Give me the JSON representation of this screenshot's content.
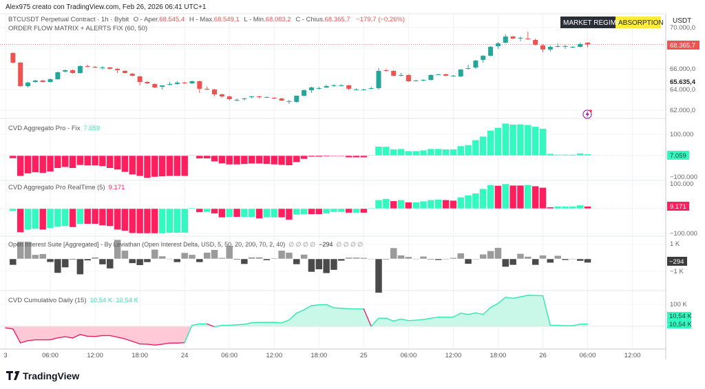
{
  "header": {
    "attribution": "Alex975 creato con TradingView.com, Feb 26, 2026 06:41 UTC+1"
  },
  "legend_main": {
    "symbol": "BTCUSDT Perpetual Contract · 1h · Bybit",
    "o_label": "O - Aper.",
    "o_value": "68.545,4",
    "h_label": "H - Max.",
    "h_value": "68.549,1",
    "l_label": "L - Min.",
    "l_value": "68.083,2",
    "c_label": "C - Chius.",
    "c_value": "68.365,7",
    "change": "−179,7 (−0,26%)",
    "indicator": "ORDER FLOW MATRIX + ALERTS FIX (60, 50)"
  },
  "regime": {
    "label": "MARKET REGIME",
    "value": "ABSORPTION"
  },
  "price_axis": {
    "currency": "USDT",
    "last_price": "68.365,7",
    "marked_level": "65.635,4"
  },
  "panes": {
    "cvd_fix": {
      "title": "CVD Aggregato Pro - Fix",
      "value": "7.059",
      "top": "100.000",
      "bottom": "−100.000"
    },
    "cvd_rt": {
      "title": "CVD Aggregato Pro RealTime  (5)",
      "value": "9.171",
      "top": "100.000",
      "bottom": "−100.000"
    },
    "oi": {
      "title": "Open Interest Suite [Aggregated] - By Leviathan (Open Interest Delta, USD, 5, 50, 20, 200, 70, 2, 40)",
      "na1": "∅ ∅ ∅ ∅",
      "value": "−294",
      "na2": "∅ ∅ ∅ ∅",
      "top": "1 K",
      "bottom": "−1 K"
    },
    "cvd_cum": {
      "title": "CVD Cumulativo Daily (15)",
      "value1": "10,54 K",
      "value2": "10,54 K",
      "top": "100 K"
    }
  },
  "time_axis": [
    "3",
    "06:00",
    "12:00",
    "18:00",
    "24",
    "06:00",
    "12:00",
    "18:00",
    "25",
    "06:00",
    "12:00",
    "18:00",
    "26",
    "06:00",
    "12:00"
  ],
  "logo": "TradingView",
  "colors": {
    "up": "#26a69a",
    "down": "#ef5350",
    "cvd_up": "#33f8c0",
    "cvd_down": "#ff1f5e",
    "oi_pos": "#9b9b9b",
    "oi_neg": "#4a4a4a",
    "regime_bg": "#2a2e39",
    "regime_accent": "#ffeb3b",
    "alert": "#9c27b0"
  },
  "chart_data": [
    {
      "type": "candlestick",
      "x_unit": "hour (from Feb 23 00:00)",
      "x_start": 1,
      "ylim": [
        61000,
        70500
      ],
      "yticks": [
        {
          "value": 70000,
          "label": "70.000,0"
        },
        {
          "value": 66000,
          "label": "66.000,0"
        },
        {
          "value": 64000,
          "label": "64.000,0"
        },
        {
          "value": 62000,
          "label": "62.000,0"
        }
      ],
      "ohlc": [
        [
          67530,
          67600,
          66530,
          66600
        ],
        [
          66600,
          66670,
          64270,
          64330
        ],
        [
          64330,
          64740,
          64200,
          64670
        ],
        [
          64730,
          64930,
          64650,
          64870
        ],
        [
          64870,
          64950,
          64680,
          64730
        ],
        [
          64730,
          65080,
          64660,
          65000
        ],
        [
          65000,
          65730,
          64930,
          65670
        ],
        [
          65730,
          65930,
          65660,
          65870
        ],
        [
          65870,
          65950,
          65530,
          65600
        ],
        [
          65600,
          66330,
          65530,
          66270
        ],
        [
          66270,
          66400,
          66130,
          66200
        ],
        [
          66200,
          66270,
          66060,
          66130
        ],
        [
          66130,
          66270,
          65930,
          66130
        ],
        [
          66130,
          66200,
          65930,
          66000
        ],
        [
          66000,
          66070,
          65600,
          65870
        ],
        [
          65800,
          65870,
          65530,
          65600
        ],
        [
          65530,
          65600,
          65260,
          65330
        ],
        [
          65270,
          65340,
          64400,
          64730
        ],
        [
          64730,
          64800,
          64530,
          64600
        ],
        [
          64530,
          64600,
          64130,
          64200
        ],
        [
          64270,
          64340,
          64000,
          64400
        ],
        [
          64470,
          64730,
          64400,
          64530
        ],
        [
          64530,
          64800,
          64460,
          64670
        ],
        [
          64670,
          64740,
          64530,
          64600
        ],
        [
          64600,
          64870,
          64530,
          64800
        ],
        [
          64800,
          64870,
          63670,
          64070
        ],
        [
          64070,
          64300,
          63930,
          64000
        ],
        [
          64000,
          64070,
          63330,
          63530
        ],
        [
          63530,
          63600,
          63200,
          63330
        ],
        [
          63330,
          63400,
          62930,
          63070
        ],
        [
          63000,
          63130,
          62870,
          63000
        ],
        [
          63070,
          63200,
          62930,
          63130
        ],
        [
          63270,
          63400,
          63130,
          63330
        ],
        [
          63330,
          63400,
          63130,
          63270
        ],
        [
          63270,
          63330,
          63200,
          63270
        ],
        [
          63200,
          63270,
          63070,
          63130
        ],
        [
          63130,
          63200,
          62870,
          62930
        ],
        [
          62870,
          63000,
          62600,
          62870
        ],
        [
          62800,
          63400,
          62730,
          63400
        ],
        [
          63400,
          64000,
          63330,
          63930
        ],
        [
          63930,
          64270,
          63670,
          64200
        ],
        [
          64130,
          64270,
          64000,
          64130
        ],
        [
          64200,
          64470,
          64130,
          64330
        ],
        [
          64330,
          64530,
          64270,
          64400
        ],
        [
          64400,
          64530,
          64330,
          64400
        ],
        [
          64400,
          64470,
          63930,
          64070
        ],
        [
          64000,
          64130,
          63930,
          64000
        ],
        [
          64000,
          64070,
          63930,
          64000
        ],
        [
          64070,
          64270,
          64000,
          64130
        ],
        [
          64130,
          66070,
          64000,
          65800
        ],
        [
          65870,
          66000,
          65730,
          65800
        ],
        [
          65800,
          65870,
          65270,
          65330
        ],
        [
          65400,
          65600,
          65270,
          65400
        ],
        [
          65400,
          65470,
          64730,
          64800
        ],
        [
          64870,
          64930,
          64800,
          64870
        ],
        [
          64870,
          65000,
          64800,
          64930
        ],
        [
          64930,
          65470,
          64870,
          65400
        ],
        [
          65470,
          65530,
          65400,
          65470
        ],
        [
          65470,
          65530,
          65270,
          65330
        ],
        [
          65330,
          65400,
          65270,
          65330
        ],
        [
          65270,
          66000,
          65200,
          65930
        ],
        [
          66000,
          66400,
          65930,
          66070
        ],
        [
          66130,
          66870,
          66000,
          66800
        ],
        [
          66870,
          67330,
          66600,
          67270
        ],
        [
          67270,
          68200,
          67200,
          68130
        ],
        [
          68200,
          68600,
          67930,
          68470
        ],
        [
          68530,
          69330,
          68470,
          69130
        ],
        [
          69130,
          69200,
          68870,
          68930
        ],
        [
          69000,
          69130,
          68670,
          69000
        ],
        [
          68930,
          69600,
          68800,
          68870
        ],
        [
          68800,
          68930,
          68270,
          68330
        ],
        [
          68270,
          68400,
          67600,
          67870
        ],
        [
          67870,
          68270,
          67670,
          68130
        ],
        [
          68200,
          68470,
          68070,
          68200
        ],
        [
          68200,
          68330,
          67930,
          68200
        ],
        [
          68130,
          68200,
          68000,
          68130
        ],
        [
          68130,
          68530,
          68070,
          68400
        ],
        [
          68545.4,
          68549.1,
          68083.2,
          68365.7
        ]
      ]
    },
    {
      "type": "bar",
      "name": "CVD Aggregato Pro - Fix",
      "unit": "thousands",
      "ylim": [
        -110,
        160
      ],
      "values": [
        -13,
        -96,
        -84,
        -79,
        -82,
        -75,
        -59,
        -54,
        -59,
        -45,
        -47,
        -47,
        -50,
        -59,
        -66,
        -77,
        -89,
        -96,
        -105,
        -100,
        -98,
        -96,
        -96,
        -96,
        3,
        -14,
        -14,
        -28,
        -37,
        -42,
        -42,
        -40,
        -38,
        -38,
        -40,
        -42,
        -44,
        -46,
        -31,
        -16,
        -6,
        -6,
        -4,
        -3,
        -3,
        -9,
        -9,
        -9,
        2,
        43,
        42,
        30,
        32,
        22,
        22,
        25,
        32,
        32,
        30,
        30,
        45,
        50,
        73,
        90,
        118,
        131,
        151,
        146,
        147,
        144,
        136,
        127,
        9,
        5,
        5,
        5,
        11,
        7.059
      ]
    },
    {
      "type": "bar",
      "name": "CVD Aggregato Pro RealTime",
      "unit": "thousands",
      "ylim": [
        -110,
        110
      ],
      "values": [
        -10,
        -96,
        -85,
        -82,
        -85,
        -79,
        -73,
        -71,
        -75,
        -62,
        -62,
        -62,
        -68,
        -71,
        -85,
        -90,
        -99,
        -100,
        -100,
        -100,
        -100,
        -98,
        -98,
        -98,
        3,
        -15,
        -14,
        -20,
        -36,
        -34,
        -34,
        -34,
        -34,
        -40,
        -36,
        -36,
        -36,
        -45,
        -25,
        -23,
        -23,
        -23,
        -20,
        -14,
        -14,
        -17,
        -17,
        -17,
        2,
        35,
        40,
        31,
        35,
        26,
        26,
        30,
        35,
        37,
        35,
        33,
        46,
        54,
        62,
        80,
        96,
        93,
        100,
        94,
        94,
        96,
        91,
        85,
        6,
        9,
        9,
        9,
        14,
        9.171
      ],
      "colors": [
        "g",
        "r",
        "g",
        "g",
        "r",
        "g",
        "g",
        "g",
        "r",
        "g",
        "r",
        "r",
        "r",
        "r",
        "r",
        "r",
        "r",
        "r",
        "r",
        "r",
        "g",
        "g",
        "g",
        "g",
        "g",
        "r",
        "g",
        "r",
        "r",
        "g",
        "r",
        "g",
        "g",
        "r",
        "g",
        "g",
        "r",
        "r",
        "g",
        "g",
        "r",
        "r",
        "g",
        "g",
        "g",
        "r",
        "g",
        "r",
        "g",
        "g",
        "g",
        "r",
        "g",
        "r",
        "g",
        "g",
        "g",
        "g",
        "r",
        "r",
        "g",
        "g",
        "g",
        "g",
        "g",
        "r",
        "g",
        "r",
        "r",
        "g",
        "r",
        "r",
        "r",
        "g",
        "g",
        "g",
        "g",
        "r"
      ]
    },
    {
      "type": "bar",
      "name": "Open Interest Delta",
      "unit": "USD",
      "ylim": [
        -2700,
        1600
      ],
      "values": [
        -470,
        1320,
        1320,
        320,
        380,
        -250,
        -1080,
        -660,
        -60,
        -1190,
        -130,
        130,
        -430,
        -740,
        1470,
        640,
        -340,
        -490,
        -260,
        720,
        210,
        20,
        -260,
        470,
        320,
        -260,
        490,
        700,
        90,
        1000,
        -60,
        -400,
        130,
        130,
        -110,
        60,
        640,
        490,
        -420,
        340,
        -1000,
        -810,
        -1100,
        -850,
        -150,
        110,
        110,
        90,
        20,
        -2600,
        -20,
        840,
        280,
        160,
        20,
        190,
        -50,
        -100,
        0,
        90,
        440,
        -390,
        0,
        350,
        610,
        860,
        -610,
        -470,
        400,
        180,
        -470,
        280,
        -300,
        250,
        -100,
        20,
        -160,
        -294
      ]
    },
    {
      "type": "area",
      "name": "CVD Cumulativo Daily",
      "unit": "thousands",
      "ylim": [
        -95,
        150
      ],
      "x_start": 0,
      "values": [
        -7,
        -12,
        -75,
        -65,
        -61,
        -61,
        -61,
        -52,
        -47,
        -53,
        -37,
        -45,
        -46,
        -42,
        -42,
        -49,
        -57,
        -68,
        -80,
        -81,
        -85,
        -81,
        -76,
        -76,
        -74,
        5,
        11,
        11,
        -2,
        5,
        5,
        7,
        9,
        17,
        18,
        18,
        18,
        16,
        29,
        60,
        75,
        94,
        98,
        99,
        84,
        82,
        80,
        79,
        79,
        0,
        37,
        37,
        24,
        33,
        26,
        28,
        31,
        37,
        42,
        42,
        42,
        60,
        54,
        61,
        54,
        86,
        104,
        132,
        127,
        134,
        141,
        140,
        139,
        5,
        4,
        3,
        3,
        10,
        10.54
      ]
    }
  ]
}
